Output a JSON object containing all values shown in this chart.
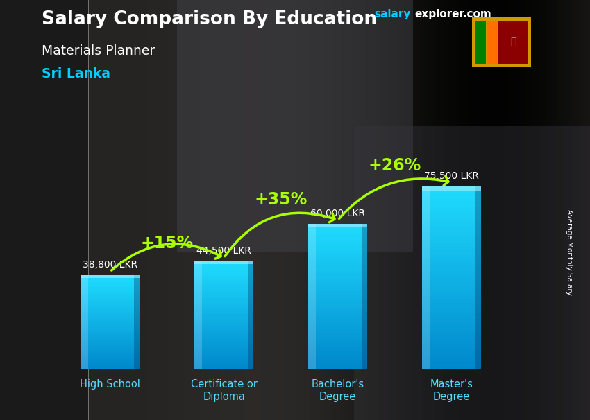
{
  "title_main": "Salary Comparison By Education",
  "title_sub": "Materials Planner",
  "title_country": "Sri Lanka",
  "ylabel": "Average Monthly Salary",
  "categories": [
    "High School",
    "Certificate or\nDiploma",
    "Bachelor's\nDegree",
    "Master's\nDegree"
  ],
  "values": [
    38800,
    44500,
    60000,
    75500
  ],
  "value_labels": [
    "38,800 LKR",
    "44,500 LKR",
    "60,000 LKR",
    "75,500 LKR"
  ],
  "pct_labels": [
    "+15%",
    "+35%",
    "+26%"
  ],
  "arrow_color": "#aaff00",
  "bar_color_bright": "#00cfff",
  "bar_color_dark": "#0077bb",
  "bg_color": "#1a1a1a",
  "ylim": [
    0,
    95000
  ],
  "watermark_salary": "salary",
  "watermark_explorer": "explorer",
  "watermark_com": ".com"
}
